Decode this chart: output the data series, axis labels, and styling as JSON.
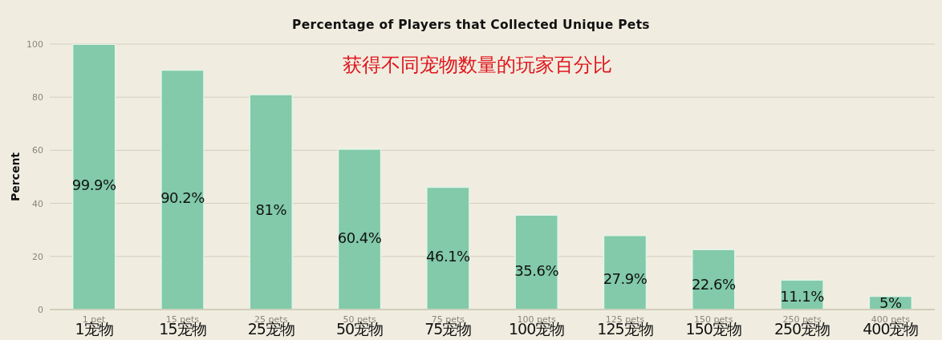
{
  "chart_data": {
    "type": "bar",
    "title": "Percentage of Players that Collected Unique Pets",
    "subtitle": "获得不同宠物数量的玩家百分比",
    "ylabel": "Percent",
    "categories": [
      "1 pet",
      "15 pets",
      "25 pets",
      "50 pets",
      "75 pets",
      "100 pets",
      "125 pets",
      "150 pets",
      "250 pets",
      "400 pets"
    ],
    "values": [
      99.9,
      90.2,
      81,
      60.4,
      46.1,
      35.6,
      27.9,
      22.6,
      11.1,
      5
    ],
    "value_labels": [
      "99.9%",
      "90.2%",
      "81%",
      "60.4%",
      "46.1%",
      "35.6%",
      "27.9%",
      "22.6%",
      "11.1%",
      "5%"
    ],
    "color": "#82caa9",
    "ylim": [
      0,
      100
    ],
    "yticks": [
      0,
      20,
      40,
      60,
      80,
      100
    ],
    "grid": "y",
    "annotations": [
      "1宠物",
      "15宠物",
      "25宠物",
      "50宠物",
      "75宠物",
      "100宠物",
      "125宠物",
      "150宠物",
      "250宠物",
      "400宠物"
    ]
  }
}
